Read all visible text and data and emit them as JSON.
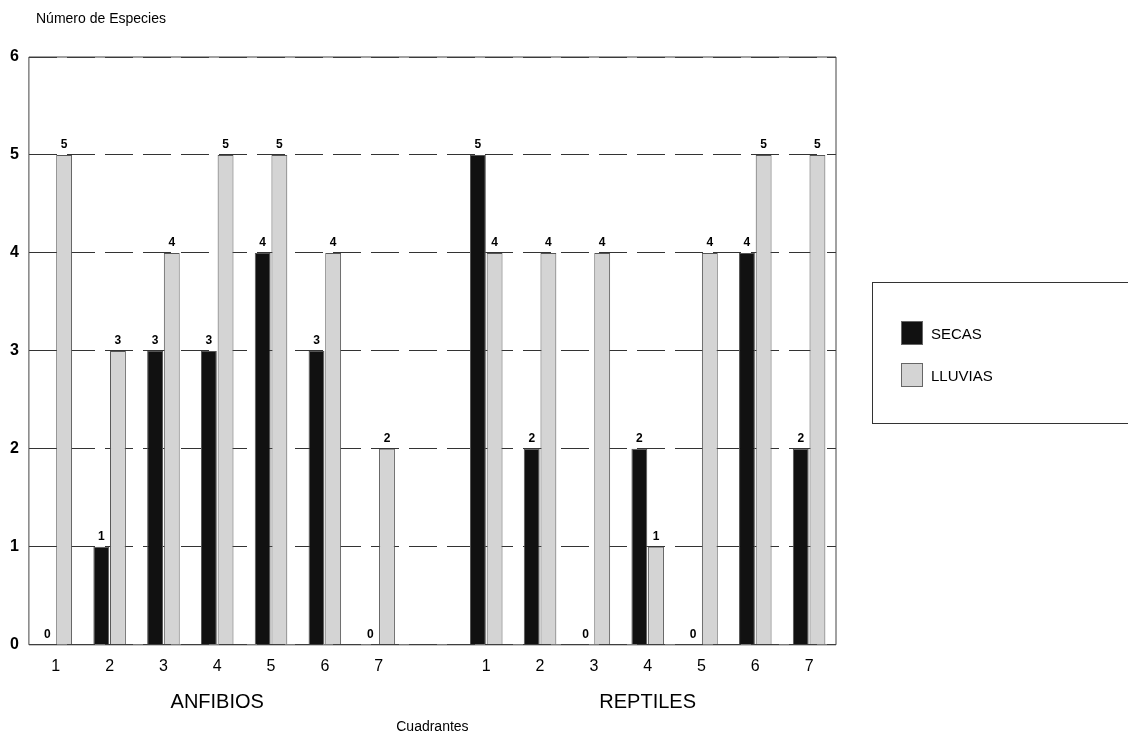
{
  "chart_data": {
    "type": "bar",
    "ylabel": "Número de Especies",
    "xlabel": "Cuadrantes",
    "categories": [
      "1",
      "2",
      "3",
      "4",
      "5",
      "6",
      "7",
      null,
      "1",
      "2",
      "3",
      "4",
      "5",
      "6",
      "7"
    ],
    "series": [
      {
        "name": "SECAS",
        "color": "#111111",
        "values": [
          0,
          1,
          3,
          3,
          4,
          3,
          0,
          null,
          5,
          2,
          0,
          2,
          0,
          4,
          2
        ]
      },
      {
        "name": "LLUVIAS",
        "color": "#d4d4d4",
        "values": [
          5,
          3,
          4,
          5,
          5,
          4,
          2,
          null,
          4,
          4,
          4,
          1,
          4,
          5,
          5
        ]
      }
    ],
    "ylim": [
      0,
      6
    ],
    "yticks": [
      0,
      1,
      2,
      3,
      4,
      5,
      6
    ],
    "grid": "y",
    "legend": "right",
    "data_labels": true,
    "annotations": [
      "ANFIBIOS",
      "REPTILES"
    ]
  }
}
